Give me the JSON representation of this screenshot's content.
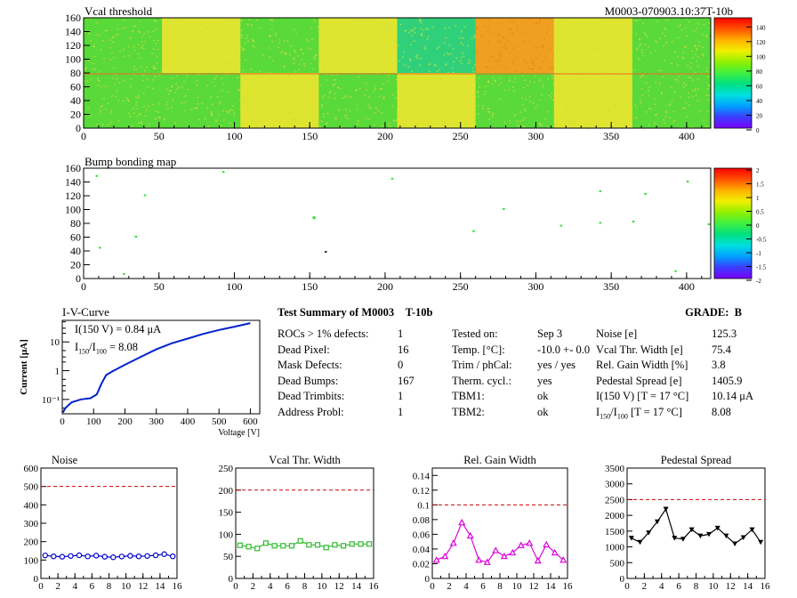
{
  "vcal_map": {
    "title": "Vcal threshold",
    "module_label": "M0003-070903.10:37T-10b",
    "x_ticks": [
      0,
      50,
      100,
      150,
      200,
      250,
      300,
      350,
      400
    ],
    "y_ticks": [
      0,
      20,
      40,
      60,
      80,
      100,
      120,
      140,
      160
    ],
    "palette_ticks": [
      0,
      20,
      40,
      60,
      80,
      100,
      120,
      140
    ],
    "colors": {
      "green": "#59d93a",
      "yellow": "#dfe52f",
      "orange": "#f0a020",
      "teal": "#30d07a"
    }
  },
  "bump_map": {
    "title": "Bump bonding map",
    "x_ticks": [
      0,
      50,
      100,
      150,
      200,
      250,
      300,
      350,
      400
    ],
    "y_ticks": [
      0,
      20,
      40,
      60,
      80,
      100,
      120,
      140,
      160
    ],
    "palette_ticks": [
      "2",
      "1.5",
      "1",
      "0.5",
      "0",
      "-0.5",
      "-1",
      "-1.5",
      "-2"
    ]
  },
  "iv": {
    "title": "I-V-Curve",
    "ylabel": "Current [μA]",
    "xlabel": "Voltage [V]",
    "x_ticks": [
      0,
      100,
      200,
      300,
      400,
      500,
      600
    ],
    "y_ticks": [
      "10⁻¹",
      "1",
      "10"
    ],
    "annot1": "I(150 V) = 0.84 μA",
    "annot2_main": "I",
    "annot2_sub1": "150",
    "annot2_mid": "/I",
    "annot2_sub2": "100",
    "annot2_val": " =  8.08",
    "curve_color": "#0022cc"
  },
  "summary": {
    "header": "Test Summary of M0003",
    "module": "T-10b",
    "grade_label": "GRADE:",
    "grade": "B",
    "col1": [
      {
        "label": "ROCs > 1% defects:",
        "value": "1"
      },
      {
        "label": "Dead Pixel:",
        "value": "16"
      },
      {
        "label": "Mask Defects:",
        "value": "0"
      },
      {
        "label": "Dead Bumps:",
        "value": "167"
      },
      {
        "label": "Dead Trimbits:",
        "value": "1"
      },
      {
        "label": "Address Probl:",
        "value": "1"
      }
    ],
    "col2": [
      {
        "label": "Tested on:",
        "value": "Sep 3"
      },
      {
        "label": "Temp. [°C]:",
        "value": "-10.0 +- 0.0"
      },
      {
        "label": "Trim / phCal:",
        "value": "yes / yes"
      },
      {
        "label": "Therm. cycl.:",
        "value": "yes"
      },
      {
        "label": "TBM1:",
        "value": "ok"
      },
      {
        "label": "TBM2:",
        "value": "ok"
      }
    ],
    "col3": [
      {
        "label": "Noise [e]",
        "value": "125.3"
      },
      {
        "label": "Vcal Thr. Width [e]",
        "value": "75.4"
      },
      {
        "label": "Rel. Gain Width [%]",
        "value": "3.8"
      },
      {
        "label": "Pedestal Spread [e]",
        "value": "1405.9"
      },
      {
        "label": "I(150 V) [T = 17 °C]",
        "value": "10.14 μA"
      }
    ],
    "last_row": {
      "a": "I",
      "sub1": "150",
      "b": "/I",
      "sub2": "100",
      "c": "  [T = 17 °C]",
      "value": "8.08"
    }
  },
  "chart_data": [
    {
      "type": "line",
      "title": "Noise",
      "x": [
        0,
        1,
        2,
        3,
        4,
        5,
        6,
        7,
        8,
        9,
        10,
        11,
        12,
        13,
        14,
        15
      ],
      "values": [
        125,
        120,
        118,
        122,
        126,
        120,
        124,
        118,
        115,
        119,
        123,
        120,
        122,
        126,
        132,
        120
      ],
      "ylim": [
        0,
        600
      ],
      "y_ticks": [
        0,
        100,
        200,
        300,
        400,
        500,
        600
      ],
      "x_ticks": [
        0,
        2,
        4,
        6,
        8,
        10,
        12,
        14,
        16
      ],
      "threshold": 500,
      "color": "#0000cc",
      "marker": "circle"
    },
    {
      "type": "line",
      "title": "Vcal Thr. Width",
      "x": [
        0,
        1,
        2,
        3,
        4,
        5,
        6,
        7,
        8,
        9,
        10,
        11,
        12,
        13,
        14,
        15
      ],
      "values": [
        75,
        72,
        68,
        80,
        74,
        74,
        74,
        85,
        76,
        76,
        70,
        76,
        74,
        78,
        78,
        78
      ],
      "ylim": [
        0,
        250
      ],
      "y_ticks": [
        0,
        50,
        100,
        150,
        200,
        250
      ],
      "x_ticks": [
        0,
        2,
        4,
        6,
        8,
        10,
        12,
        14,
        16
      ],
      "threshold": 200,
      "color": "#33bb33",
      "marker": "square"
    },
    {
      "type": "line",
      "title": "Rel. Gain Width",
      "x": [
        0,
        1,
        2,
        3,
        4,
        5,
        6,
        7,
        8,
        9,
        10,
        11,
        12,
        13,
        14,
        15
      ],
      "values": [
        0.025,
        0.03,
        0.048,
        0.076,
        0.058,
        0.025,
        0.022,
        0.038,
        0.03,
        0.035,
        0.045,
        0.048,
        0.024,
        0.046,
        0.035,
        0.025
      ],
      "ylim": [
        0,
        0.15
      ],
      "y_ticks": [
        0,
        0.02,
        0.04,
        0.06,
        0.08,
        0.1,
        0.12,
        0.14
      ],
      "x_ticks": [
        0,
        2,
        4,
        6,
        8,
        10,
        12,
        14,
        16
      ],
      "threshold": 0.1,
      "color": "#dd00dd",
      "marker": "triangle"
    },
    {
      "type": "line",
      "title": "Pedestal Spread",
      "x": [
        0,
        1,
        2,
        3,
        4,
        5,
        6,
        7,
        8,
        9,
        10,
        11,
        12,
        13,
        14,
        15
      ],
      "values": [
        1280,
        1150,
        1450,
        1800,
        2200,
        1280,
        1250,
        1550,
        1350,
        1400,
        1600,
        1350,
        1100,
        1300,
        1550,
        1150
      ],
      "ylim": [
        0,
        3500
      ],
      "y_ticks": [
        0,
        500,
        1000,
        1500,
        2000,
        2500,
        3000,
        3500
      ],
      "x_ticks": [
        0,
        2,
        4,
        6,
        8,
        10,
        12,
        14,
        16
      ],
      "threshold": 2500,
      "color": "#000000",
      "marker": "triangle-down"
    }
  ]
}
